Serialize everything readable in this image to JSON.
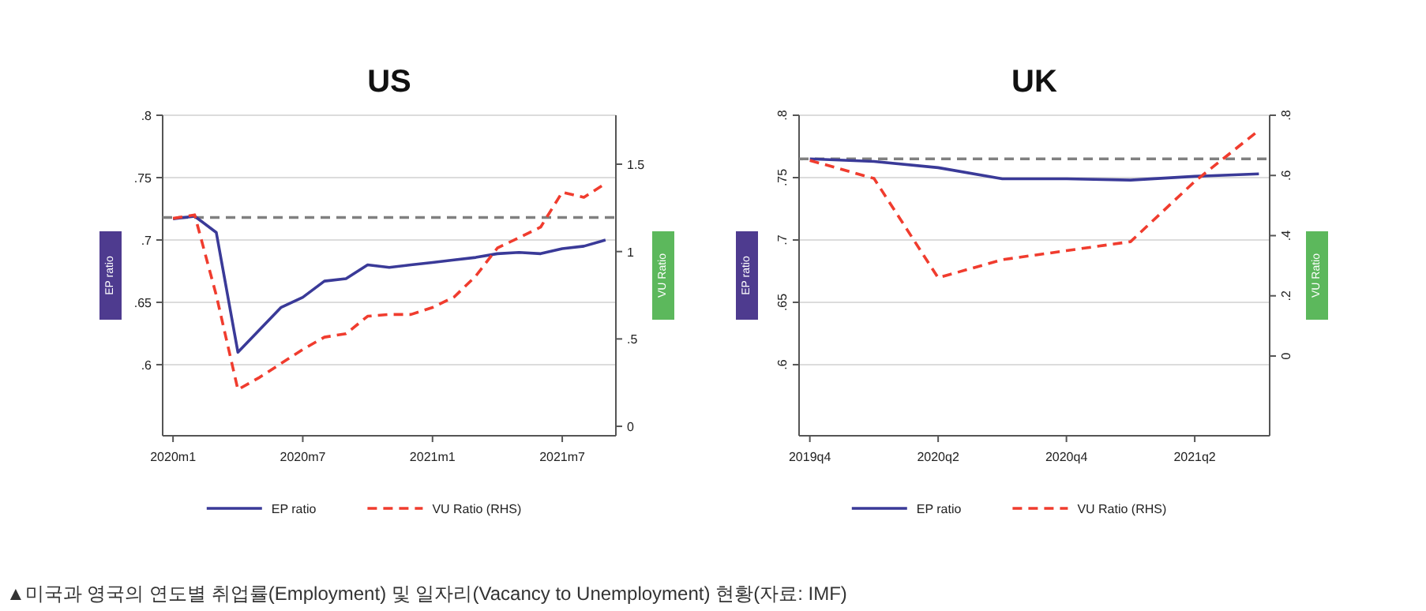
{
  "chart_data": [
    {
      "type": "line",
      "title": "US",
      "ylabel": "EP ratio",
      "y2label": "VU Ratio",
      "categories": [
        "2020m1",
        null,
        null,
        null,
        null,
        null,
        "2020m7",
        null,
        null,
        null,
        null,
        null,
        "2021m1",
        null,
        null,
        null,
        null,
        null,
        "2021m7",
        null,
        null
      ],
      "ylim": [
        0.543,
        0.8
      ],
      "yticks": [
        {
          "value": 0.6,
          "label": ".6"
        },
        {
          "value": 0.65,
          "label": ".65"
        },
        {
          "value": 0.7,
          "label": ".7"
        },
        {
          "value": 0.75,
          "label": ".75"
        },
        {
          "value": 0.8,
          "label": ".8"
        }
      ],
      "y2lim": [
        -0.054,
        1.78
      ],
      "y2ticks": [
        0,
        {
          "value": 0.5,
          "label": ".5"
        },
        1,
        1.5
      ],
      "grid": "y",
      "legend": "bottom",
      "series": [
        {
          "name": "EP ratio",
          "color": "#3a3a98",
          "values": [
            0.717,
            0.719,
            0.706,
            0.61,
            0.628,
            0.646,
            0.654,
            0.667,
            0.669,
            0.68,
            0.678,
            0.68,
            0.682,
            0.684,
            0.686,
            0.689,
            0.69,
            0.689,
            0.693,
            0.695,
            0.7
          ]
        },
        {
          "name": "VU Ratio (RHS)",
          "color": "#f03c2e",
          "axis": "y2",
          "line_style": "dashed",
          "values": [
            1.19,
            1.21,
            0.75,
            0.21,
            0.28,
            0.36,
            0.44,
            0.51,
            0.53,
            0.63,
            0.64,
            0.64,
            0.68,
            0.74,
            0.86,
            1.02,
            1.08,
            1.14,
            1.34,
            1.31,
            1.39
          ]
        }
      ],
      "ref_lines": [
        {
          "axis": "y",
          "value": 0.718,
          "color": "#808080",
          "line_style": "dashed"
        }
      ],
      "annotations": [
        "▲미국과 영국의 연도별 취업률(Employment) 및 일자리(Vacancy to Unemployment) 현황(자료: IMF)"
      ]
    },
    {
      "type": "line",
      "title": "UK",
      "ylabel": "EP ratio",
      "y2label": "VU Ratio",
      "categories": [
        "2019q4",
        null,
        "2020q2",
        null,
        "2020q4",
        null,
        "2021q2",
        null
      ],
      "ylim": [
        0.543,
        0.8
      ],
      "yticks": [
        {
          "value": 0.6,
          "label": ".6"
        },
        {
          "value": 0.65,
          "label": ".65"
        },
        {
          "value": 0.7,
          "label": ".7"
        },
        {
          "value": 0.75,
          "label": ".75"
        },
        {
          "value": 0.8,
          "label": ".8"
        }
      ],
      "y2lim": [
        -0.265,
        0.8
      ],
      "y2ticks": [
        0,
        {
          "value": 0.2,
          "label": ".2"
        },
        {
          "value": 0.4,
          "label": ".4"
        },
        {
          "value": 0.6,
          "label": ".6"
        },
        {
          "value": 0.8,
          "label": ".8"
        }
      ],
      "grid": "y",
      "legend": "bottom",
      "series": [
        {
          "name": "EP ratio",
          "color": "#3a3a98",
          "values": [
            0.765,
            0.763,
            0.758,
            0.749,
            0.749,
            0.748,
            0.751,
            0.753
          ]
        },
        {
          "name": "VU Ratio (RHS)",
          "color": "#f03c2e",
          "axis": "y2",
          "line_style": "dashed",
          "values": [
            0.65,
            0.59,
            0.26,
            0.32,
            0.35,
            0.38,
            0.58,
            0.75
          ]
        }
      ],
      "ref_lines": [
        {
          "axis": "y",
          "value": 0.765,
          "color": "#808080",
          "line_style": "dashed"
        }
      ]
    }
  ]
}
